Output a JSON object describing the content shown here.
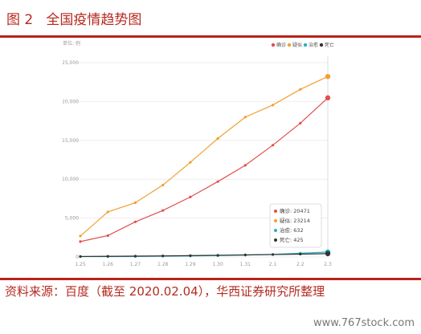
{
  "figure": {
    "title": "图 2   全国疫情趋势图",
    "source": "资料来源：百度（截至 2020.02.04），华西证券研究所整理",
    "watermark": "www.767stock.com"
  },
  "chart_data": {
    "type": "line",
    "unit_label": "单位: 例",
    "categories": [
      "1.25",
      "1.26",
      "1.27",
      "1.28",
      "1.29",
      "1.30",
      "1.31",
      "2.1",
      "2.2",
      "2.3"
    ],
    "ylim": [
      0,
      25000
    ],
    "yticks": [
      "0",
      "5,000",
      "10,000",
      "15,000",
      "20,000",
      "25,000"
    ],
    "grid": true,
    "legend_position": "top-right",
    "series": [
      {
        "name": "确诊",
        "color": "#e0504d",
        "values": [
          1975,
          2744,
          4515,
          5974,
          7711,
          9692,
          11791,
          14380,
          17205,
          20471
        ]
      },
      {
        "name": "疑似",
        "color": "#f0a030",
        "values": [
          2684,
          5794,
          6973,
          9239,
          12167,
          15238,
          17988,
          19544,
          21558,
          23214
        ]
      },
      {
        "name": "治愈",
        "color": "#24b3c4",
        "values": [
          49,
          51,
          60,
          103,
          124,
          171,
          243,
          328,
          475,
          632
        ]
      },
      {
        "name": "死亡",
        "color": "#333333",
        "values": [
          56,
          80,
          106,
          132,
          170,
          213,
          259,
          304,
          361,
          425
        ]
      }
    ],
    "tooltip": {
      "category": "2.3",
      "entries": [
        "确诊: 20471",
        "疑似: 23214",
        "治愈: 632",
        "死亡: 425"
      ]
    }
  }
}
